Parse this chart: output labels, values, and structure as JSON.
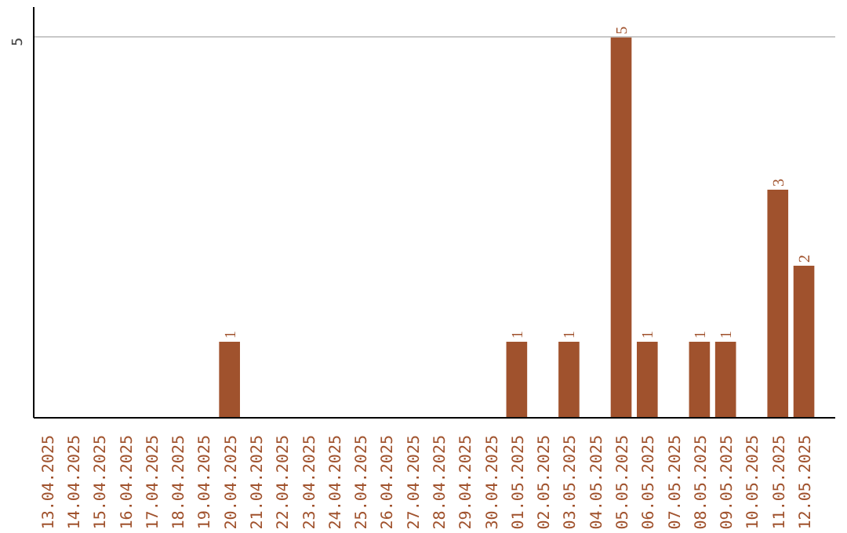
{
  "chart_data": {
    "type": "bar",
    "categories": [
      "13.04.2025",
      "14.04.2025",
      "15.04.2025",
      "16.04.2025",
      "17.04.2025",
      "18.04.2025",
      "19.04.2025",
      "20.04.2025",
      "21.04.2025",
      "22.04.2025",
      "23.04.2025",
      "24.04.2025",
      "25.04.2025",
      "26.04.2025",
      "27.04.2025",
      "28.04.2025",
      "29.04.2025",
      "30.04.2025",
      "01.05.2025",
      "02.05.2025",
      "03.05.2025",
      "04.05.2025",
      "05.05.2025",
      "06.05.2025",
      "07.05.2025",
      "08.05.2025",
      "09.05.2025",
      "10.05.2025",
      "11.05.2025",
      "12.05.2025"
    ],
    "values": [
      0,
      0,
      0,
      0,
      0,
      0,
      0,
      1,
      0,
      0,
      0,
      0,
      0,
      0,
      0,
      0,
      0,
      0,
      1,
      0,
      1,
      0,
      5,
      1,
      0,
      1,
      1,
      0,
      3,
      2
    ],
    "value_labels": [
      null,
      null,
      null,
      null,
      null,
      null,
      null,
      "1",
      null,
      null,
      null,
      null,
      null,
      null,
      null,
      null,
      null,
      null,
      "1",
      null,
      "1",
      null,
      "5",
      "1",
      null,
      "1",
      "1",
      null,
      "3",
      "2"
    ],
    "color": "#a0522d",
    "ylim": [
      0,
      5.4
    ],
    "yticks": [
      5
    ],
    "grid": "y"
  }
}
